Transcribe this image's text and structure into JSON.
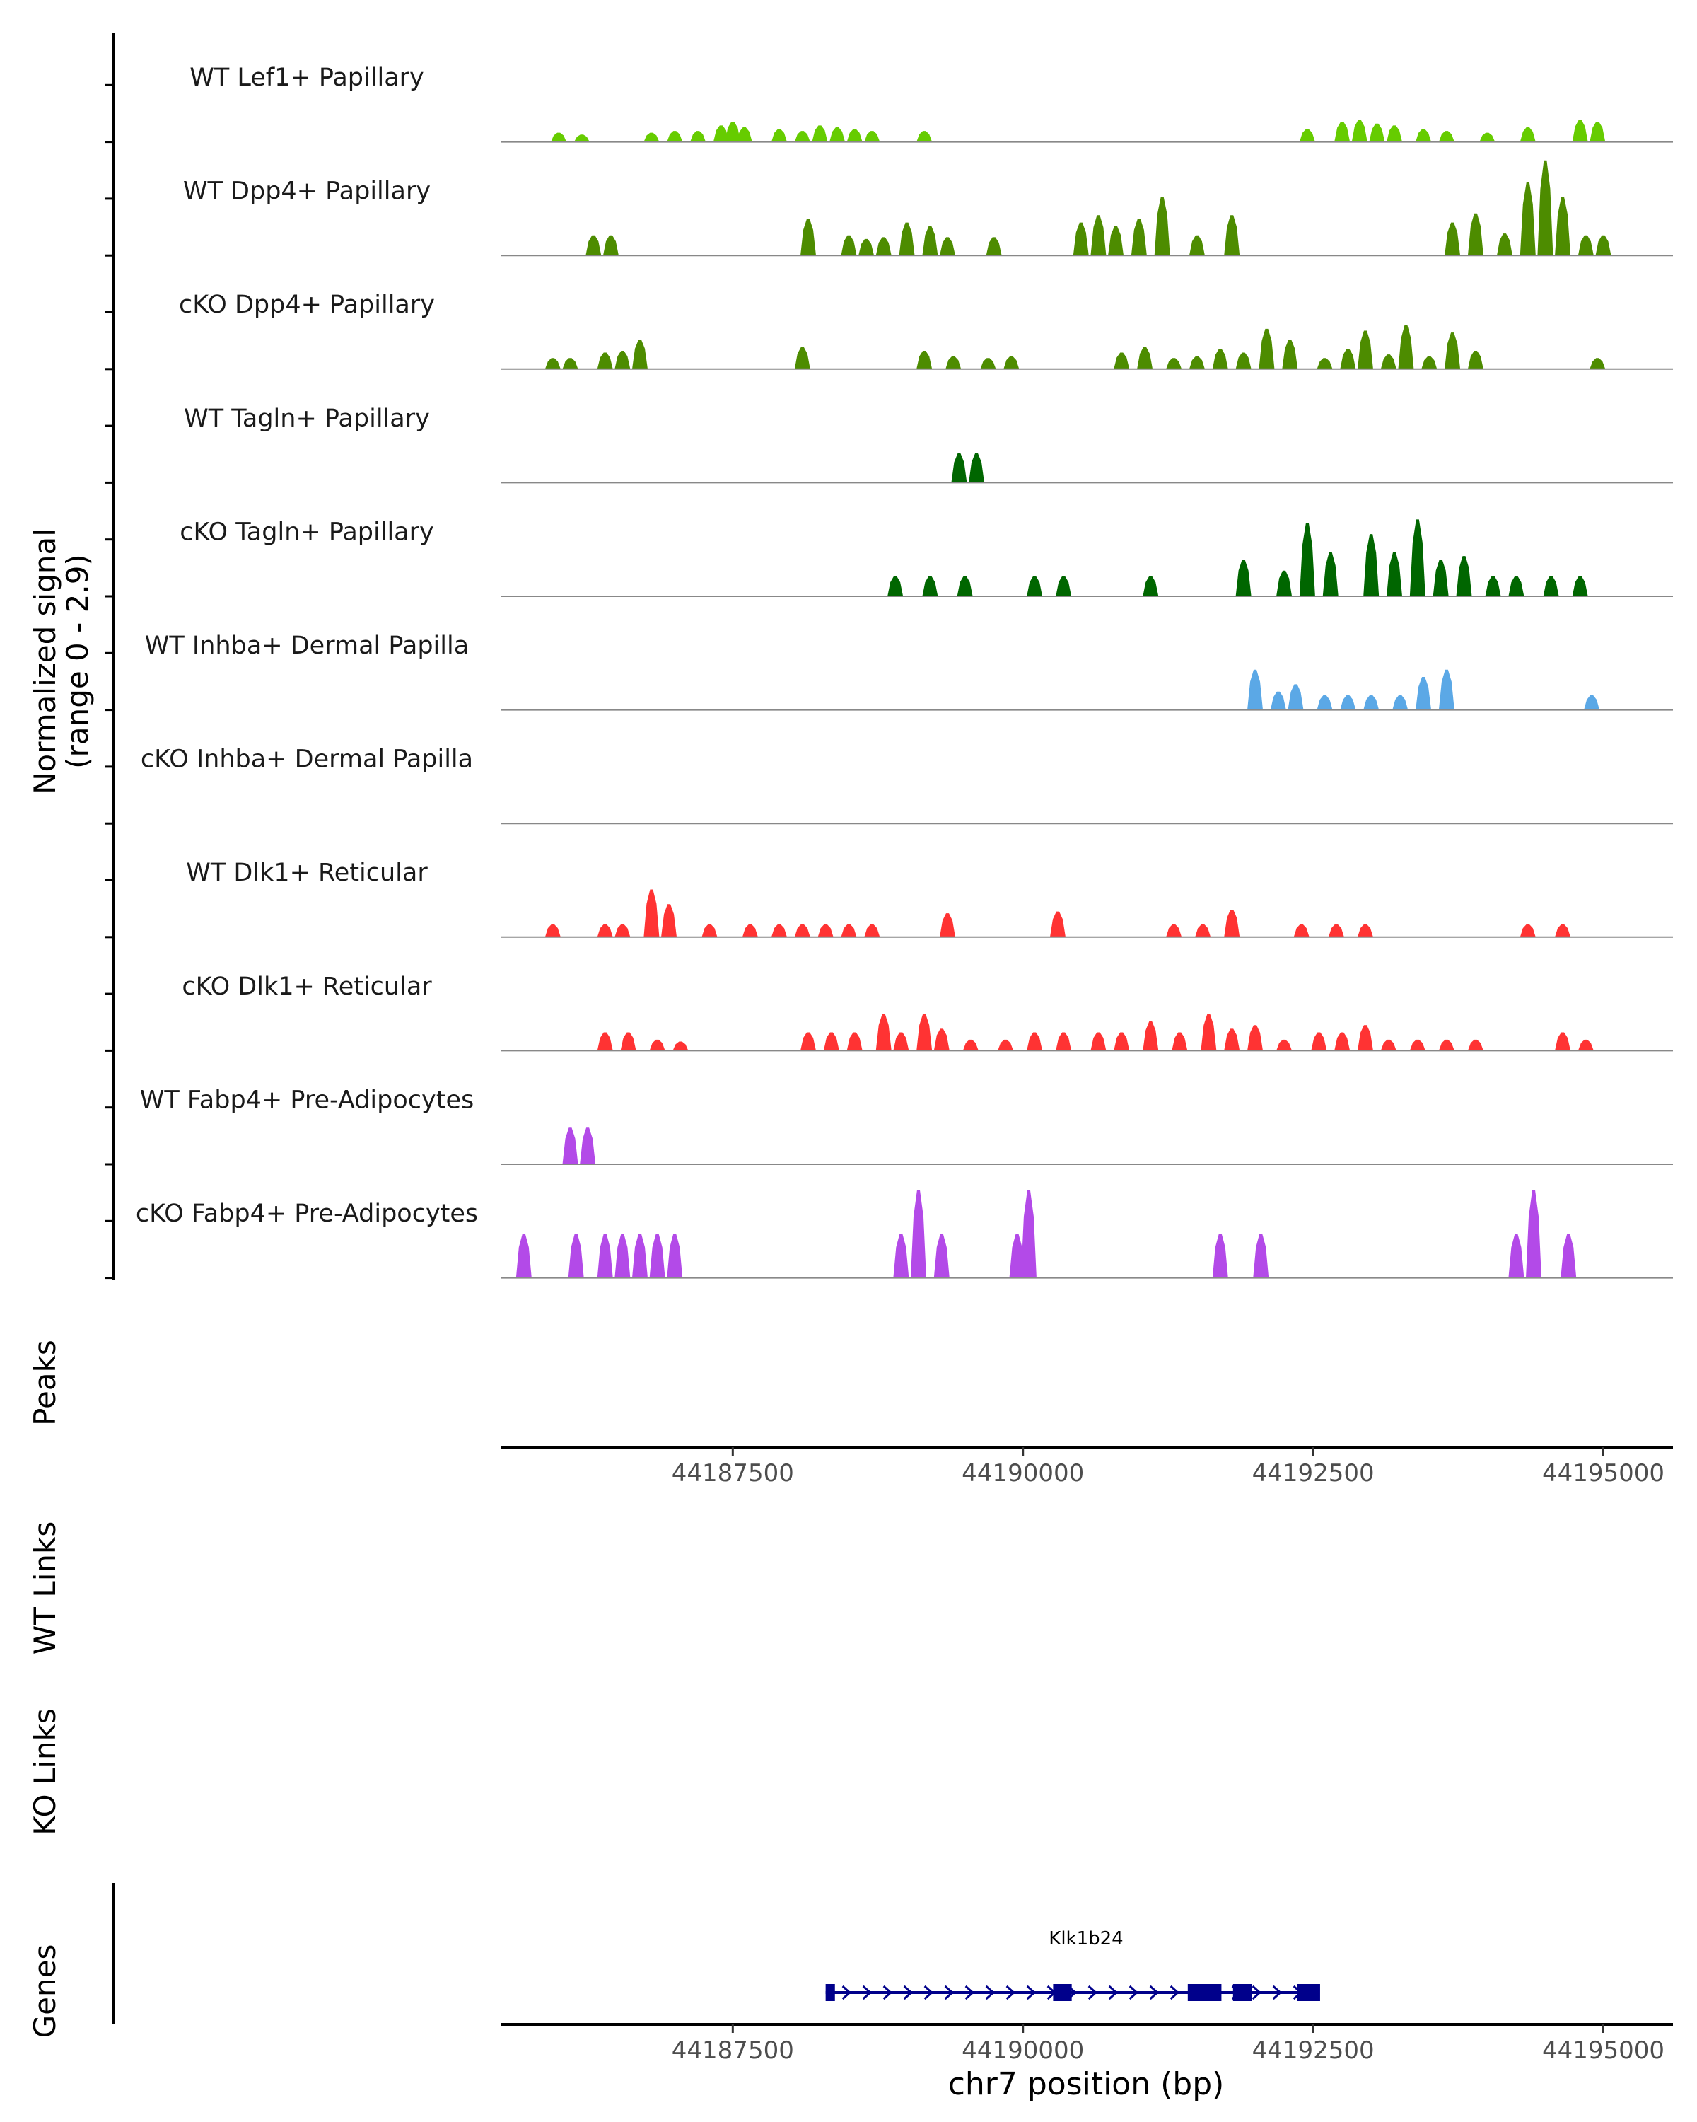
{
  "chart_data": {
    "type": "area",
    "title": "",
    "region": {
      "chromosome": "chr7",
      "start": 44185500,
      "end": 44195600
    },
    "coverage": {
      "ylabel_line1": "Normalized signal",
      "ylabel_line2": "(range 0 - 2.9)",
      "ylim": [
        0,
        2.9
      ],
      "tracks": [
        {
          "name": "WT Lef1+ Papillary",
          "color": "#66CC00",
          "peaks": [
            [
              44186000,
              0.25
            ],
            [
              44186200,
              0.2
            ],
            [
              44186800,
              0.25
            ],
            [
              44187000,
              0.3
            ],
            [
              44187200,
              0.3
            ],
            [
              44187400,
              0.45
            ],
            [
              44187500,
              0.55
            ],
            [
              44187600,
              0.4
            ],
            [
              44187900,
              0.35
            ],
            [
              44188100,
              0.3
            ],
            [
              44188250,
              0.45
            ],
            [
              44188400,
              0.4
            ],
            [
              44188550,
              0.35
            ],
            [
              44188700,
              0.3
            ],
            [
              44189150,
              0.3
            ],
            [
              44192450,
              0.35
            ],
            [
              44192750,
              0.55
            ],
            [
              44192900,
              0.6
            ],
            [
              44193050,
              0.5
            ],
            [
              44193200,
              0.45
            ],
            [
              44193450,
              0.35
            ],
            [
              44193650,
              0.3
            ],
            [
              44194000,
              0.25
            ],
            [
              44194350,
              0.4
            ],
            [
              44194800,
              0.6
            ],
            [
              44194950,
              0.55
            ]
          ]
        },
        {
          "name": "WT Dpp4+ Papillary",
          "color": "#4D8C00",
          "peaks": [
            [
              44186300,
              0.55
            ],
            [
              44186450,
              0.55
            ],
            [
              44188150,
              1.0
            ],
            [
              44188500,
              0.55
            ],
            [
              44188650,
              0.45
            ],
            [
              44188800,
              0.5
            ],
            [
              44189000,
              0.9
            ],
            [
              44189200,
              0.8
            ],
            [
              44189350,
              0.5
            ],
            [
              44189750,
              0.5
            ],
            [
              44190500,
              0.9
            ],
            [
              44190650,
              1.1
            ],
            [
              44190800,
              0.8
            ],
            [
              44191000,
              1.0
            ],
            [
              44191200,
              1.6
            ],
            [
              44191500,
              0.55
            ],
            [
              44191800,
              1.1
            ],
            [
              44193700,
              0.9
            ],
            [
              44193900,
              1.15
            ],
            [
              44194150,
              0.6
            ],
            [
              44194350,
              2.0
            ],
            [
              44194500,
              2.6
            ],
            [
              44194650,
              1.6
            ],
            [
              44194850,
              0.55
            ],
            [
              44195000,
              0.55
            ]
          ]
        },
        {
          "name": "cKO Dpp4+ Papillary",
          "color": "#4D8C00",
          "peaks": [
            [
              44185950,
              0.3
            ],
            [
              44186100,
              0.3
            ],
            [
              44186400,
              0.45
            ],
            [
              44186550,
              0.5
            ],
            [
              44186700,
              0.8
            ],
            [
              44188100,
              0.6
            ],
            [
              44189150,
              0.5
            ],
            [
              44189400,
              0.35
            ],
            [
              44189700,
              0.3
            ],
            [
              44189900,
              0.35
            ],
            [
              44190850,
              0.45
            ],
            [
              44191050,
              0.6
            ],
            [
              44191300,
              0.3
            ],
            [
              44191500,
              0.35
            ],
            [
              44191700,
              0.55
            ],
            [
              44191900,
              0.45
            ],
            [
              44192100,
              1.1
            ],
            [
              44192300,
              0.8
            ],
            [
              44192600,
              0.3
            ],
            [
              44192800,
              0.55
            ],
            [
              44192950,
              1.05
            ],
            [
              44193150,
              0.4
            ],
            [
              44193300,
              1.2
            ],
            [
              44193500,
              0.35
            ],
            [
              44193700,
              1.0
            ],
            [
              44193900,
              0.5
            ],
            [
              44194950,
              0.3
            ]
          ]
        },
        {
          "name": "WT Tagln+ Papillary",
          "color": "#006600",
          "peaks": [
            [
              44189450,
              0.8
            ],
            [
              44189600,
              0.8
            ]
          ]
        },
        {
          "name": "cKO Tagln+ Papillary",
          "color": "#006600",
          "peaks": [
            [
              44188900,
              0.55
            ],
            [
              44189200,
              0.55
            ],
            [
              44189500,
              0.55
            ],
            [
              44190100,
              0.55
            ],
            [
              44190350,
              0.55
            ],
            [
              44191100,
              0.55
            ],
            [
              44191900,
              1.0
            ],
            [
              44192250,
              0.7
            ],
            [
              44192450,
              2.0
            ],
            [
              44192650,
              1.2
            ],
            [
              44193000,
              1.7
            ],
            [
              44193200,
              1.2
            ],
            [
              44193400,
              2.1
            ],
            [
              44193600,
              1.0
            ],
            [
              44193800,
              1.1
            ],
            [
              44194050,
              0.55
            ],
            [
              44194250,
              0.55
            ],
            [
              44194550,
              0.55
            ],
            [
              44194800,
              0.55
            ]
          ]
        },
        {
          "name": "WT Inhba+ Dermal Papilla",
          "color": "#5BA8E6",
          "peaks": [
            [
              44192000,
              1.1
            ],
            [
              44192200,
              0.5
            ],
            [
              44192350,
              0.7
            ],
            [
              44192600,
              0.4
            ],
            [
              44192800,
              0.4
            ],
            [
              44193000,
              0.4
            ],
            [
              44193250,
              0.4
            ],
            [
              44193450,
              0.9
            ],
            [
              44193650,
              1.1
            ],
            [
              44194900,
              0.4
            ]
          ]
        },
        {
          "name": "cKO Inhba+ Dermal Papilla",
          "color": "#5BA8E6",
          "peaks": []
        },
        {
          "name": "WT Dlk1+ Reticular",
          "color": "#FF3333",
          "peaks": [
            [
              44185950,
              0.35
            ],
            [
              44186400,
              0.35
            ],
            [
              44186550,
              0.35
            ],
            [
              44186800,
              1.3
            ],
            [
              44186950,
              0.9
            ],
            [
              44187300,
              0.35
            ],
            [
              44187650,
              0.35
            ],
            [
              44187900,
              0.35
            ],
            [
              44188100,
              0.35
            ],
            [
              44188300,
              0.35
            ],
            [
              44188500,
              0.35
            ],
            [
              44188700,
              0.35
            ],
            [
              44189350,
              0.65
            ],
            [
              44190300,
              0.7
            ],
            [
              44191300,
              0.35
            ],
            [
              44191550,
              0.35
            ],
            [
              44191800,
              0.75
            ],
            [
              44192400,
              0.35
            ],
            [
              44192700,
              0.35
            ],
            [
              44192950,
              0.35
            ],
            [
              44194350,
              0.35
            ],
            [
              44194650,
              0.35
            ]
          ]
        },
        {
          "name": "cKO Dlk1+ Reticular",
          "color": "#FF3333",
          "peaks": [
            [
              44186400,
              0.5
            ],
            [
              44186600,
              0.5
            ],
            [
              44186850,
              0.3
            ],
            [
              44187050,
              0.25
            ],
            [
              44188150,
              0.5
            ],
            [
              44188350,
              0.5
            ],
            [
              44188550,
              0.5
            ],
            [
              44188800,
              1.0
            ],
            [
              44188950,
              0.5
            ],
            [
              44189150,
              1.0
            ],
            [
              44189300,
              0.6
            ],
            [
              44189550,
              0.3
            ],
            [
              44189850,
              0.3
            ],
            [
              44190100,
              0.5
            ],
            [
              44190350,
              0.5
            ],
            [
              44190650,
              0.5
            ],
            [
              44190850,
              0.5
            ],
            [
              44191100,
              0.8
            ],
            [
              44191350,
              0.5
            ],
            [
              44191600,
              1.0
            ],
            [
              44191800,
              0.6
            ],
            [
              44192000,
              0.7
            ],
            [
              44192250,
              0.3
            ],
            [
              44192550,
              0.5
            ],
            [
              44192750,
              0.5
            ],
            [
              44192950,
              0.7
            ],
            [
              44193150,
              0.3
            ],
            [
              44193400,
              0.3
            ],
            [
              44193650,
              0.3
            ],
            [
              44193900,
              0.3
            ],
            [
              44194650,
              0.5
            ],
            [
              44194850,
              0.3
            ]
          ]
        },
        {
          "name": "WT Fabp4+ Pre-Adipocytes",
          "color": "#B34AE8",
          "peaks": [
            [
              44186100,
              1.0
            ],
            [
              44186250,
              1.0
            ]
          ]
        },
        {
          "name": "cKO Fabp4+ Pre-Adipocytes",
          "color": "#B34AE8",
          "peaks": [
            [
              44185700,
              1.2
            ],
            [
              44186150,
              1.2
            ],
            [
              44186400,
              1.2
            ],
            [
              44186550,
              1.2
            ],
            [
              44186700,
              1.2
            ],
            [
              44186850,
              1.2
            ],
            [
              44187000,
              1.2
            ],
            [
              44188950,
              1.2
            ],
            [
              44189100,
              2.4
            ],
            [
              44189300,
              1.2
            ],
            [
              44189950,
              1.2
            ],
            [
              44190050,
              2.4
            ],
            [
              44191700,
              1.2
            ],
            [
              44192050,
              1.2
            ],
            [
              44194250,
              1.2
            ],
            [
              44194400,
              2.4
            ],
            [
              44194700,
              1.2
            ]
          ]
        }
      ]
    },
    "peaks_label": "Peaks",
    "wt_links_label": "WT Links",
    "ko_links_label": "KO Links",
    "genes_label": "Genes",
    "xaxis": {
      "ticks": [
        44187500,
        44190000,
        44192500,
        44195000
      ],
      "tick_labels": [
        "44187500",
        "44190000",
        "44192500",
        "44195000"
      ],
      "xlabel": "chr7 position (bp)"
    },
    "gene": {
      "name": "Klk1b24",
      "color": "#00008B",
      "start": 44188300,
      "end": 44192500,
      "exons": [
        [
          44188300,
          44188380
        ],
        [
          44190260,
          44190420
        ],
        [
          44191420,
          44191710
        ],
        [
          44191810,
          44191970
        ],
        [
          44192360,
          44192560
        ]
      ]
    }
  }
}
